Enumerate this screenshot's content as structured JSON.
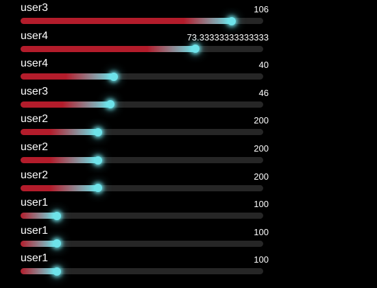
{
  "chart_data": {
    "type": "bar",
    "orientation": "horizontal",
    "categories": [
      "user3",
      "user4",
      "user4",
      "user3",
      "user2",
      "user2",
      "user2",
      "user1",
      "user1",
      "user1"
    ],
    "values": [
      106,
      73.33333333333333,
      40,
      46,
      200,
      200,
      200,
      100,
      100,
      100
    ],
    "value_labels": [
      "106",
      "73.33333333333333",
      "40",
      "46",
      "200",
      "200",
      "200",
      "100",
      "100",
      "100"
    ],
    "progress_fraction": [
      0.87,
      0.72,
      0.385,
      0.37,
      0.32,
      0.32,
      0.32,
      0.15,
      0.15,
      0.15
    ],
    "title": "",
    "xlabel": "",
    "ylabel": "",
    "grid": false,
    "legend": "none"
  },
  "colors": {
    "background": "#000000",
    "track": "#262626",
    "fill_start": "#b31c2b",
    "fill_end": "#6ee3ea",
    "knob": "#6ee3ea",
    "text": "#ffffff"
  }
}
